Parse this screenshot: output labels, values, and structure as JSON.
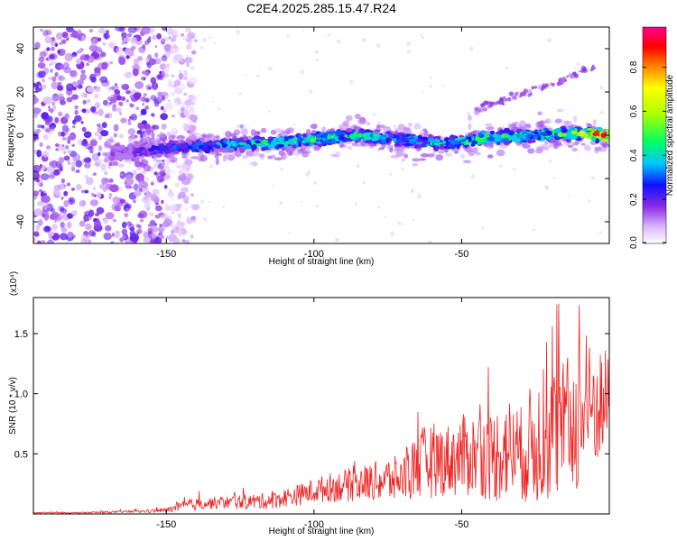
{
  "figure": {
    "title": "C2E4.2025.285.15.47.R24"
  },
  "colors": {
    "snr_line": "#ee2222",
    "axis": "#000000"
  },
  "chart_data": [
    {
      "type": "heatmap",
      "xlabel": "Height of straight line (km)",
      "ylabel": "Frequency (Hz)",
      "xlim": [
        -195,
        0
      ],
      "ylim": [
        -50,
        50
      ],
      "xticks": [
        -150,
        -100,
        -50
      ],
      "yticks": [
        -40,
        -20,
        0,
        20,
        40
      ],
      "colorbar": {
        "label": "Normalized spectral amplitude",
        "range": [
          0,
          1
        ],
        "ticks": [
          "0.0",
          "0.2",
          "0.4",
          "0.6",
          "0.8"
        ],
        "colormap": "rainbow (white-violet-blue-cyan-green-yellow-red-magenta)"
      },
      "features": {
        "noise_region_x": [
          -195,
          -150
        ],
        "ridge": [
          {
            "x": -165,
            "y": -8,
            "amp": 0.15
          },
          {
            "x": -150,
            "y": -6,
            "amp": 0.3
          },
          {
            "x": -135,
            "y": -5,
            "amp": 0.35
          },
          {
            "x": -120,
            "y": -4,
            "amp": 0.45
          },
          {
            "x": -100,
            "y": -2,
            "amp": 0.5
          },
          {
            "x": -85,
            "y": 0,
            "amp": 0.45
          },
          {
            "x": -70,
            "y": -2,
            "amp": 0.35
          },
          {
            "x": -55,
            "y": -4,
            "amp": 0.4
          },
          {
            "x": -40,
            "y": -1,
            "amp": 0.55
          },
          {
            "x": -25,
            "y": 0,
            "amp": 0.45
          },
          {
            "x": -10,
            "y": 1,
            "amp": 0.6
          },
          {
            "x": -2,
            "y": 0,
            "amp": 0.95
          }
        ],
        "secondary_streak": [
          {
            "x": -45,
            "y": 12
          },
          {
            "x": -32,
            "y": 18
          },
          {
            "x": -18,
            "y": 24
          },
          {
            "x": -5,
            "y": 32
          }
        ]
      }
    },
    {
      "type": "line",
      "xlabel": "Height of straight line (km)",
      "ylabel": "SNR (10 * v/v)",
      "scale_label": "(x10⁴)",
      "xlim": [
        -195,
        0
      ],
      "ylim": [
        0,
        1.8
      ],
      "xticks": [
        -150,
        -100,
        -50
      ],
      "yticks": [
        "0.5",
        "1.0",
        "1.5"
      ],
      "series": [
        {
          "x": [
            -195,
            -180,
            -160,
            -150,
            -145,
            -140,
            -135,
            -125,
            -115,
            -105,
            -95,
            -85,
            -80,
            -75,
            -70,
            -65,
            -60,
            -55,
            -50,
            -45,
            -40,
            -35,
            -30,
            -25,
            -20,
            -15,
            -10,
            -5,
            0
          ],
          "y": [
            0.01,
            0.01,
            0.02,
            0.03,
            0.06,
            0.08,
            0.09,
            0.1,
            0.11,
            0.16,
            0.22,
            0.25,
            0.27,
            0.28,
            0.3,
            0.4,
            0.45,
            0.45,
            0.48,
            0.5,
            0.47,
            0.55,
            0.5,
            0.6,
            0.65,
            0.7,
            0.8,
            0.9,
            0.95
          ],
          "spread": [
            0.005,
            0.005,
            0.01,
            0.02,
            0.04,
            0.05,
            0.05,
            0.06,
            0.07,
            0.09,
            0.12,
            0.15,
            0.16,
            0.2,
            0.18,
            0.3,
            0.32,
            0.3,
            0.35,
            0.35,
            0.38,
            0.45,
            0.4,
            0.55,
            0.55,
            0.6,
            0.6,
            0.55,
            0.4
          ]
        }
      ]
    }
  ]
}
